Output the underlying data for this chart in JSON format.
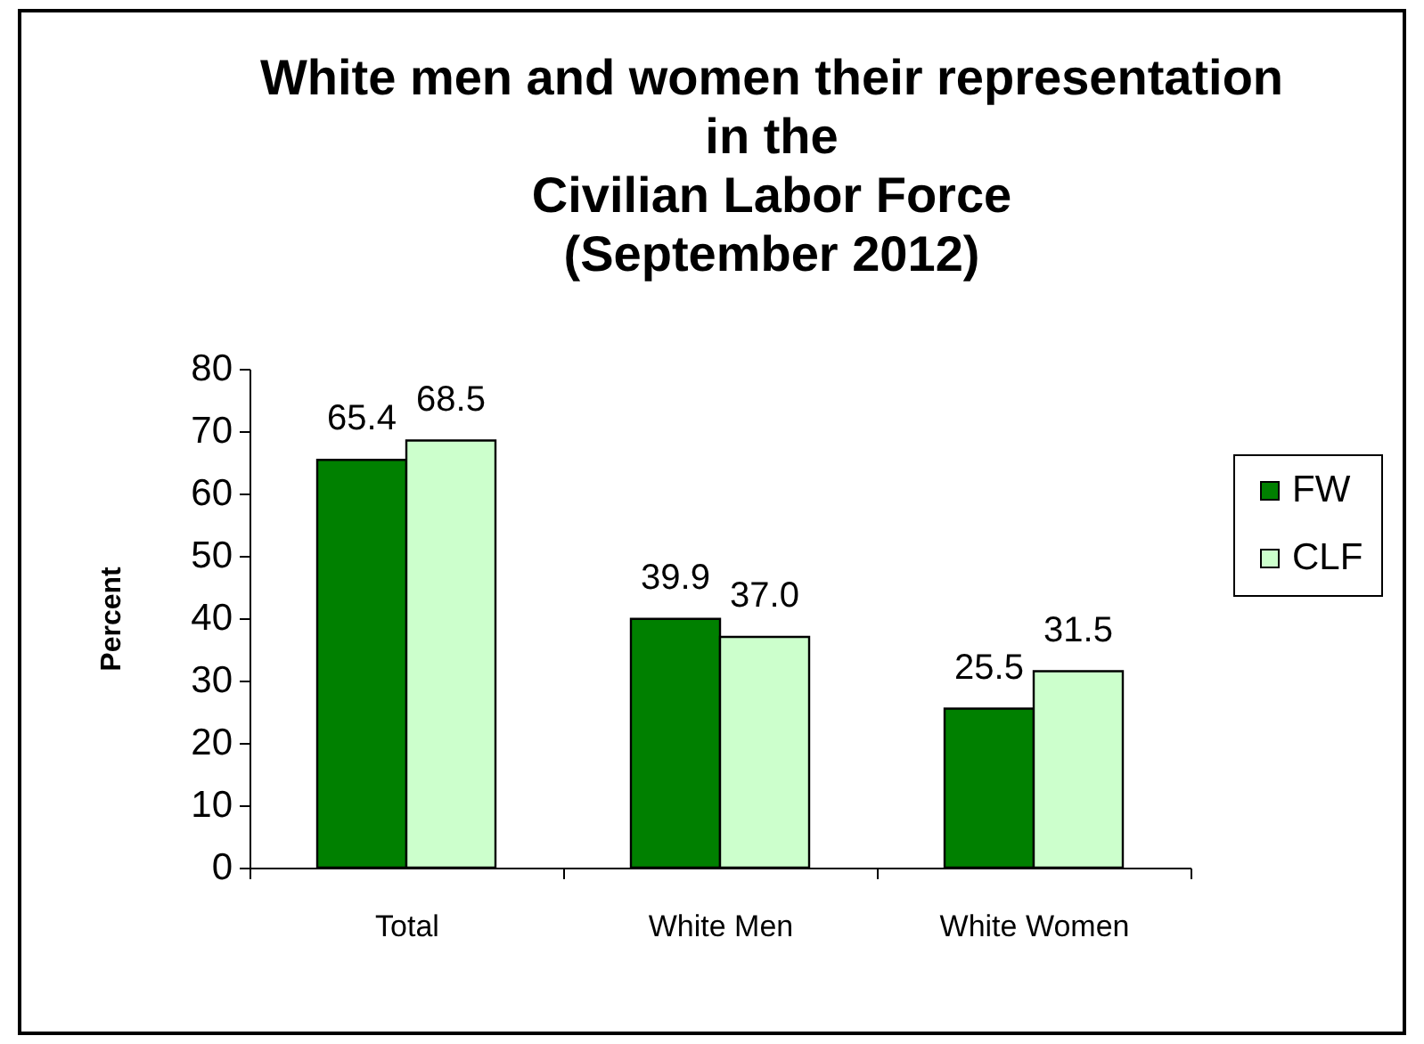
{
  "chart_data": {
    "type": "bar",
    "title": "White men and women their representation\nin the\nCivilian Labor Force\n(September 2012)",
    "ylabel": "Percent",
    "categories": [
      "Total",
      "White Men",
      "White Women"
    ],
    "series": [
      {
        "name": "FW",
        "color": "#008000",
        "values": [
          65.4,
          39.9,
          25.5
        ],
        "value_labels": [
          "65.4",
          "39.9",
          "25.5"
        ]
      },
      {
        "name": "CLF",
        "color": "#ccffcc",
        "values": [
          68.5,
          37.0,
          31.5
        ],
        "value_labels": [
          "68.5",
          "37.0",
          "31.5"
        ]
      }
    ],
    "ylim": [
      0,
      80
    ],
    "yticks": [
      0,
      10,
      20,
      30,
      40,
      50,
      60,
      70,
      80
    ],
    "legend": "right"
  }
}
